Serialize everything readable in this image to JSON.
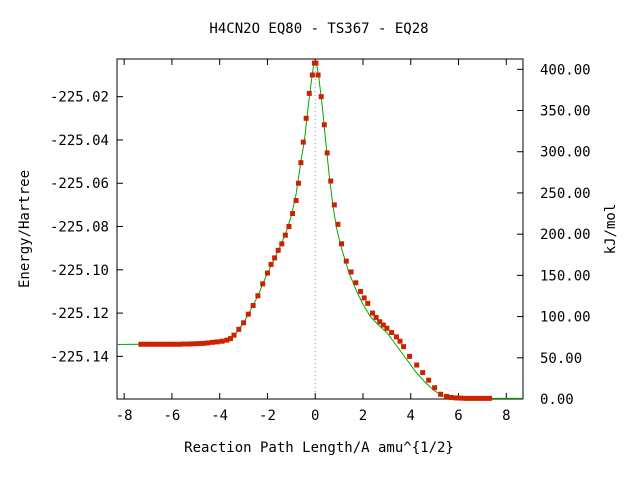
{
  "chart_data": {
    "type": "line",
    "title": "H4CN2O   EQ80 - TS367 - EQ28",
    "xlabel": "Reaction Path Length/A amu^{1/2}",
    "ylabel": "Energy/Hartree",
    "y2label": "kJ/mol",
    "xlim": [
      -8.3,
      8.7
    ],
    "ylim": [
      -225.1597,
      -225.0026
    ],
    "y2lim": [
      0,
      412.5
    ],
    "x_ticks": [
      -8,
      -6,
      -4,
      -2,
      0,
      2,
      4,
      6,
      8
    ],
    "x_tick_labels": [
      "-8",
      "-6",
      "-4",
      "-2",
      "0",
      "2",
      "4",
      "6",
      "8"
    ],
    "y_ticks": [
      -225.02,
      -225.04,
      -225.06,
      -225.08,
      -225.1,
      -225.12,
      -225.14
    ],
    "y_tick_labels": [
      "-225.02",
      "-225.04",
      "-225.06",
      "-225.08",
      "-225.10",
      "-225.12",
      "-225.14"
    ],
    "y2_ticks": [
      0,
      50,
      100,
      150,
      200,
      250,
      300,
      350,
      400
    ],
    "y2_tick_labels": [
      "0.00",
      "50.00",
      "100.00",
      "150.00",
      "200.00",
      "250.00",
      "300.00",
      "350.00",
      "400.00"
    ],
    "grid": false,
    "zero_line_x": 0,
    "colors": {
      "curve": "#00aa00",
      "marker": "#cc2200",
      "zero_line": "#999999",
      "axis": "#000000"
    },
    "series": [
      {
        "style": "line",
        "points": [
          [
            -8.3,
            -225.1345
          ],
          [
            -7.4,
            -225.1344
          ],
          [
            -6.0,
            -225.1344
          ],
          [
            -5.0,
            -225.1342
          ],
          [
            -4.3,
            -225.1335
          ],
          [
            -3.8,
            -225.1327
          ],
          [
            -3.5,
            -225.131
          ],
          [
            -3.3,
            -225.129
          ],
          [
            -3.0,
            -225.1245
          ],
          [
            -2.7,
            -225.1185
          ],
          [
            -2.4,
            -225.112
          ],
          [
            -2.1,
            -225.104
          ],
          [
            -1.8,
            -225.097
          ],
          [
            -1.5,
            -225.09
          ],
          [
            -1.2,
            -225.082
          ],
          [
            -1.0,
            -225.075
          ],
          [
            -0.8,
            -225.065
          ],
          [
            -0.6,
            -225.05
          ],
          [
            -0.45,
            -225.04
          ],
          [
            -0.3,
            -225.025
          ],
          [
            -0.15,
            -225.012
          ],
          [
            -0.05,
            -225.004
          ],
          [
            0.0,
            -225.0035
          ],
          [
            0.05,
            -225.0045
          ],
          [
            0.15,
            -225.011
          ],
          [
            0.3,
            -225.025
          ],
          [
            0.45,
            -225.042
          ],
          [
            0.6,
            -225.058
          ],
          [
            0.75,
            -225.071
          ],
          [
            0.9,
            -225.081
          ],
          [
            1.1,
            -225.09
          ],
          [
            1.4,
            -225.101
          ],
          [
            1.7,
            -225.109
          ],
          [
            2.0,
            -225.116
          ],
          [
            2.3,
            -225.1215
          ],
          [
            2.6,
            -225.125
          ],
          [
            3.0,
            -225.129
          ],
          [
            3.4,
            -225.135
          ],
          [
            3.8,
            -225.141
          ],
          [
            4.2,
            -225.147
          ],
          [
            4.6,
            -225.152
          ],
          [
            5.0,
            -225.156
          ],
          [
            5.4,
            -225.1585
          ],
          [
            5.8,
            -225.1592
          ],
          [
            6.5,
            -225.1594
          ],
          [
            7.5,
            -225.1594
          ],
          [
            8.7,
            -225.1594
          ]
        ]
      },
      {
        "style": "markers",
        "points": [
          [
            -7.3,
            -225.1344
          ],
          [
            -7.1,
            -225.1344
          ],
          [
            -6.9,
            -225.1344
          ],
          [
            -6.7,
            -225.1344
          ],
          [
            -6.5,
            -225.1344
          ],
          [
            -6.3,
            -225.1344
          ],
          [
            -6.1,
            -225.1344
          ],
          [
            -5.9,
            -225.1344
          ],
          [
            -5.7,
            -225.1344
          ],
          [
            -5.5,
            -225.1343
          ],
          [
            -5.3,
            -225.1343
          ],
          [
            -5.1,
            -225.1342
          ],
          [
            -4.9,
            -225.1341
          ],
          [
            -4.7,
            -225.134
          ],
          [
            -4.5,
            -225.1338
          ],
          [
            -4.3,
            -225.1335
          ],
          [
            -4.1,
            -225.1333
          ],
          [
            -3.9,
            -225.133
          ],
          [
            -3.7,
            -225.1325
          ],
          [
            -3.55,
            -225.1318
          ],
          [
            -3.4,
            -225.1302
          ],
          [
            -3.2,
            -225.1275
          ],
          [
            -3.0,
            -225.1245
          ],
          [
            -2.8,
            -225.1205
          ],
          [
            -2.6,
            -225.1165
          ],
          [
            -2.4,
            -225.112
          ],
          [
            -2.2,
            -225.1065
          ],
          [
            -2.0,
            -225.1015
          ],
          [
            -1.85,
            -225.0975
          ],
          [
            -1.7,
            -225.0945
          ],
          [
            -1.55,
            -225.091
          ],
          [
            -1.4,
            -225.088
          ],
          [
            -1.25,
            -225.084
          ],
          [
            -1.1,
            -225.08
          ],
          [
            -0.95,
            -225.074
          ],
          [
            -0.8,
            -225.068
          ],
          [
            -0.7,
            -225.06
          ],
          [
            -0.6,
            -225.0505
          ],
          [
            -0.5,
            -225.041
          ],
          [
            -0.38,
            -225.03
          ],
          [
            -0.25,
            -225.0185
          ],
          [
            -0.12,
            -225.01
          ],
          [
            -0.03,
            -225.0045
          ],
          [
            0.03,
            -225.0045
          ],
          [
            0.12,
            -225.01
          ],
          [
            0.25,
            -225.02
          ],
          [
            0.38,
            -225.033
          ],
          [
            0.5,
            -225.046
          ],
          [
            0.65,
            -225.059
          ],
          [
            0.8,
            -225.07
          ],
          [
            0.95,
            -225.079
          ],
          [
            1.1,
            -225.088
          ],
          [
            1.3,
            -225.096
          ],
          [
            1.5,
            -225.101
          ],
          [
            1.7,
            -225.106
          ],
          [
            1.9,
            -225.11
          ],
          [
            2.05,
            -225.113
          ],
          [
            2.2,
            -225.1155
          ],
          [
            2.4,
            -225.12
          ],
          [
            2.55,
            -225.122
          ],
          [
            2.7,
            -225.124
          ],
          [
            2.85,
            -225.1255
          ],
          [
            3.0,
            -225.127
          ],
          [
            3.2,
            -225.129
          ],
          [
            3.4,
            -225.131
          ],
          [
            3.55,
            -225.133
          ],
          [
            3.7,
            -225.1355
          ],
          [
            3.95,
            -225.14
          ],
          [
            4.25,
            -225.144
          ],
          [
            4.5,
            -225.1475
          ],
          [
            4.75,
            -225.151
          ],
          [
            5.0,
            -225.1545
          ],
          [
            5.25,
            -225.1575
          ],
          [
            5.5,
            -225.1585
          ],
          [
            5.7,
            -225.159
          ],
          [
            5.9,
            -225.1592
          ],
          [
            6.1,
            -225.1593
          ],
          [
            6.3,
            -225.1594
          ],
          [
            6.5,
            -225.1594
          ],
          [
            6.7,
            -225.1594
          ],
          [
            6.9,
            -225.1594
          ],
          [
            7.1,
            -225.1594
          ],
          [
            7.3,
            -225.1594
          ]
        ]
      }
    ]
  }
}
